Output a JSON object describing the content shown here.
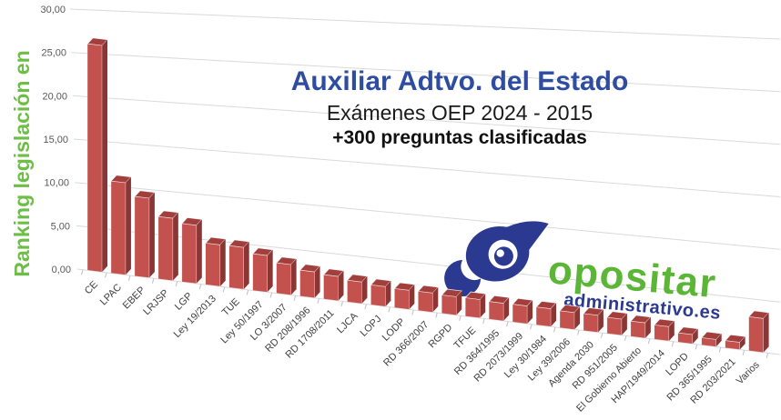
{
  "header": {
    "title": "Auxiliar Adtvo. del Estado",
    "subtitle": "Exámenes OEP 2024 - 2015",
    "highlight": "+300 preguntas clasificadas"
  },
  "y_axis_title": "Ranking legislación en",
  "logo": {
    "brand": "opositar",
    "domain": "administrativo.es"
  },
  "colors": {
    "title_blue": "#2E4DA1",
    "subtitle_black": "#1a1a1a",
    "axis_title_green": "#6CBE45",
    "brand_green": "#5BB637",
    "brand_navy": "#2B3990",
    "bar_front": "#C3514D",
    "bar_top": "#A23E3C",
    "bar_side": "#8A3634",
    "gridline": "#D9D9D9",
    "tick": "#BFBFBF",
    "axis_text": "#595959",
    "category_text": "#404040"
  },
  "chart_data": {
    "type": "bar",
    "style": "3d-perspective",
    "title": "Auxiliar Adtvo. del Estado — Exámenes OEP 2024 - 2015 — +300 preguntas clasificadas",
    "xlabel": "",
    "ylabel": "Ranking legislación en",
    "ylim": [
      0,
      30
    ],
    "y_tick_step": 5,
    "y_tick_labels": [
      "0,00",
      "5,00",
      "10,00",
      "15,00",
      "20,00",
      "25,00",
      "30,00"
    ],
    "grid": true,
    "legend": false,
    "categories": [
      "CE",
      "LPAC",
      "EBEP",
      "LRJSP",
      "LGP",
      "Ley 19/2013",
      "TUE",
      "Ley 50/1997",
      "LO 3/2007",
      "RD 208/1996",
      "RD 1708/2011",
      "LJCA",
      "LOPJ",
      "LODP",
      "RD 366/2007",
      "RGPD",
      "TFUE",
      "RD 364/1995",
      "RD 2073/1999",
      "Ley 30/1984",
      "Ley 39/2006",
      "Agenda 2030",
      "RD 951/2005",
      "El Gobierno Abierto",
      "HAP/1949/2014",
      "LOPD",
      "RD 365/1995",
      "RD 203/2021",
      "Varios"
    ],
    "values": [
      26,
      10.5,
      9,
      7,
      6.5,
      4.6,
      4.6,
      4,
      3.3,
      2.8,
      2.6,
      2.3,
      2.1,
      2,
      2,
      1.9,
      1.9,
      1.8,
      1.8,
      1.8,
      1.7,
      1.7,
      1.6,
      1.5,
      1.4,
      0.9,
      0.7,
      0.7,
      3.25
    ]
  }
}
